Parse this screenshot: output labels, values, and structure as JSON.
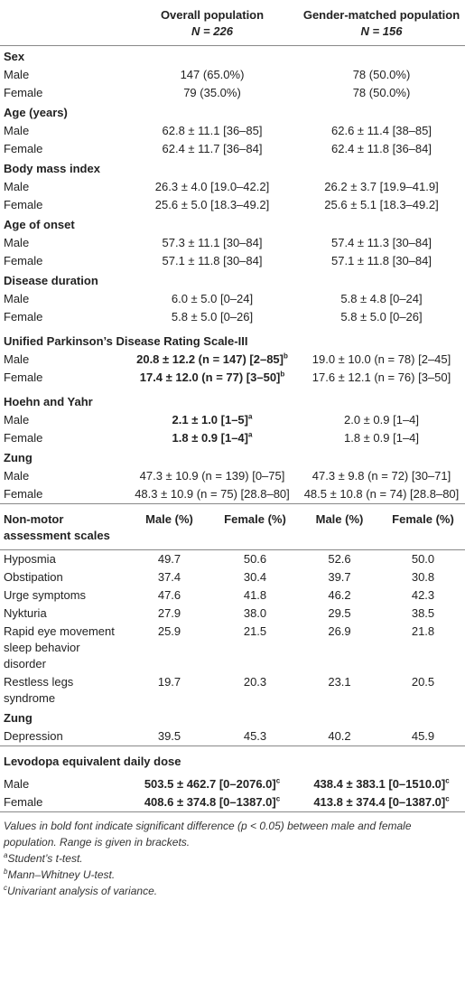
{
  "header": {
    "columns": [
      "Overall population",
      "Gender-matched population"
    ],
    "n": [
      "N = 226",
      "N = 156"
    ]
  },
  "sections": [
    {
      "title": "Sex",
      "rows": [
        {
          "label": "Male",
          "overall": "147 (65.0%)",
          "matched": "78 (50.0%)"
        },
        {
          "label": "Female",
          "overall": "79 (35.0%)",
          "matched": "78 (50.0%)"
        }
      ]
    },
    {
      "title": "Age (years)",
      "rows": [
        {
          "label": "Male",
          "overall": "62.8 ± 11.1 [36–85]",
          "matched": "62.6 ± 11.4 [38–85]"
        },
        {
          "label": "Female",
          "overall": "62.4 ± 11.7 [36–84]",
          "matched": "62.4 ± 11.8 [36–84]"
        }
      ]
    },
    {
      "title": "Body mass index",
      "rows": [
        {
          "label": "Male",
          "overall": "26.3 ± 4.0 [19.0–42.2]",
          "matched": "26.2 ± 3.7 [19.9–41.9]"
        },
        {
          "label": "Female",
          "overall": "25.6 ± 5.0 [18.3–49.2]",
          "matched": "25.6 ± 5.1 [18.3–49.2]"
        }
      ]
    },
    {
      "title": "Age of onset",
      "rows": [
        {
          "label": "Male",
          "overall": "57.3 ± 11.1 [30–84]",
          "matched": "57.4 ± 11.3 [30–84]"
        },
        {
          "label": "Female",
          "overall": "57.1 ± 11.8 [30–84]",
          "matched": "57.1 ± 11.8 [30–84]"
        }
      ]
    },
    {
      "title": "Disease duration",
      "rows": [
        {
          "label": "Male",
          "overall": "6.0 ± 5.0 [0–24]",
          "matched": "5.8 ± 4.8 [0–24]"
        },
        {
          "label": "Female",
          "overall": "5.8 ± 5.0 [0–26]",
          "matched": "5.8 ± 5.0 [0–26]"
        }
      ]
    },
    {
      "title": "Unified Parkinson’s Disease Rating Scale-III",
      "rows": [
        {
          "label": "Male",
          "overall": "20.8 ± 12.2 (n = 147) [2–85]",
          "overall_note": "b",
          "overall_bold": true,
          "matched": "19.0 ± 10.0 (n = 78) [2–45]"
        },
        {
          "label": "Female",
          "overall": "17.4 ± 12.0 (n = 77) [3–50]",
          "overall_note": "b",
          "overall_bold": true,
          "matched": "17.6 ± 12.1 (n = 76) [3–50]"
        }
      ]
    },
    {
      "title": "Hoehn and Yahr",
      "rows": [
        {
          "label": "Male",
          "overall": "2.1 ± 1.0 [1–5]",
          "overall_note": "a",
          "overall_bold": true,
          "matched": "2.0 ± 0.9 [1–4]"
        },
        {
          "label": "Female",
          "overall": "1.8 ± 0.9 [1–4]",
          "overall_note": "a",
          "overall_bold": true,
          "matched": "1.8 ± 0.9 [1–4]"
        }
      ]
    },
    {
      "title": "Zung",
      "rows": [
        {
          "label": "Male",
          "overall": "47.3 ± 10.9 (n = 139) [0–75]",
          "matched": "47.3 ± 9.8 (n = 72) [30–71]"
        },
        {
          "label": "Female",
          "overall": "48.3 ± 10.9 (n = 75) [28.8–80]",
          "matched": "48.5 ± 10.8 (n = 74) [28.8–80]"
        }
      ]
    }
  ],
  "nonmotor": {
    "header": [
      "Non-motor assessment scales",
      "Male (%)",
      "Female (%)",
      "Male (%)",
      "Female (%)"
    ],
    "rows": [
      {
        "label": "Hyposmia",
        "values": [
          "49.7",
          "50.6",
          "52.6",
          "50.0"
        ]
      },
      {
        "label": "Obstipation",
        "values": [
          "37.4",
          "30.4",
          "39.7",
          "30.8"
        ]
      },
      {
        "label": "Urge symptoms",
        "values": [
          "47.6",
          "41.8",
          "46.2",
          "42.3"
        ]
      },
      {
        "label": "Nykturia",
        "values": [
          "27.9",
          "38.0",
          "29.5",
          "38.5"
        ]
      },
      {
        "label": "Rapid eye movement sleep behavior disorder",
        "values": [
          "25.9",
          "21.5",
          "26.9",
          "21.8"
        ]
      },
      {
        "label": "Restless legs syndrome",
        "values": [
          "19.7",
          "20.3",
          "23.1",
          "20.5"
        ]
      }
    ],
    "subsection": {
      "title": "Zung",
      "rows": [
        {
          "label": "Depression",
          "values": [
            "39.5",
            "45.3",
            "40.2",
            "45.9"
          ]
        }
      ]
    }
  },
  "levodopa": {
    "title": "Levodopa equivalent daily dose",
    "rows": [
      {
        "label": "Male",
        "overall": "503.5 ± 462.7 [0–2076.0]",
        "overall_note": "c",
        "overall_bold": true,
        "matched": "438.4 ± 383.1 [0–1510.0]",
        "matched_note": "c",
        "matched_bold": true
      },
      {
        "label": "Female",
        "overall": "408.6 ± 374.8 [0–1387.0]",
        "overall_note": "c",
        "overall_bold": true,
        "matched": "413.8 ± 374.4 [0–1387.0]",
        "matched_note": "c",
        "matched_bold": true
      }
    ]
  },
  "note": "Values in bold font indicate significant difference (p < 0.05) between male and female population. Range is given in brackets.",
  "footnotes": [
    {
      "mark": "a",
      "text": "Student’s t-test."
    },
    {
      "mark": "b",
      "text": "Mann–Whitney U-test."
    },
    {
      "mark": "c",
      "text": "Univariant analysis of variance."
    }
  ]
}
